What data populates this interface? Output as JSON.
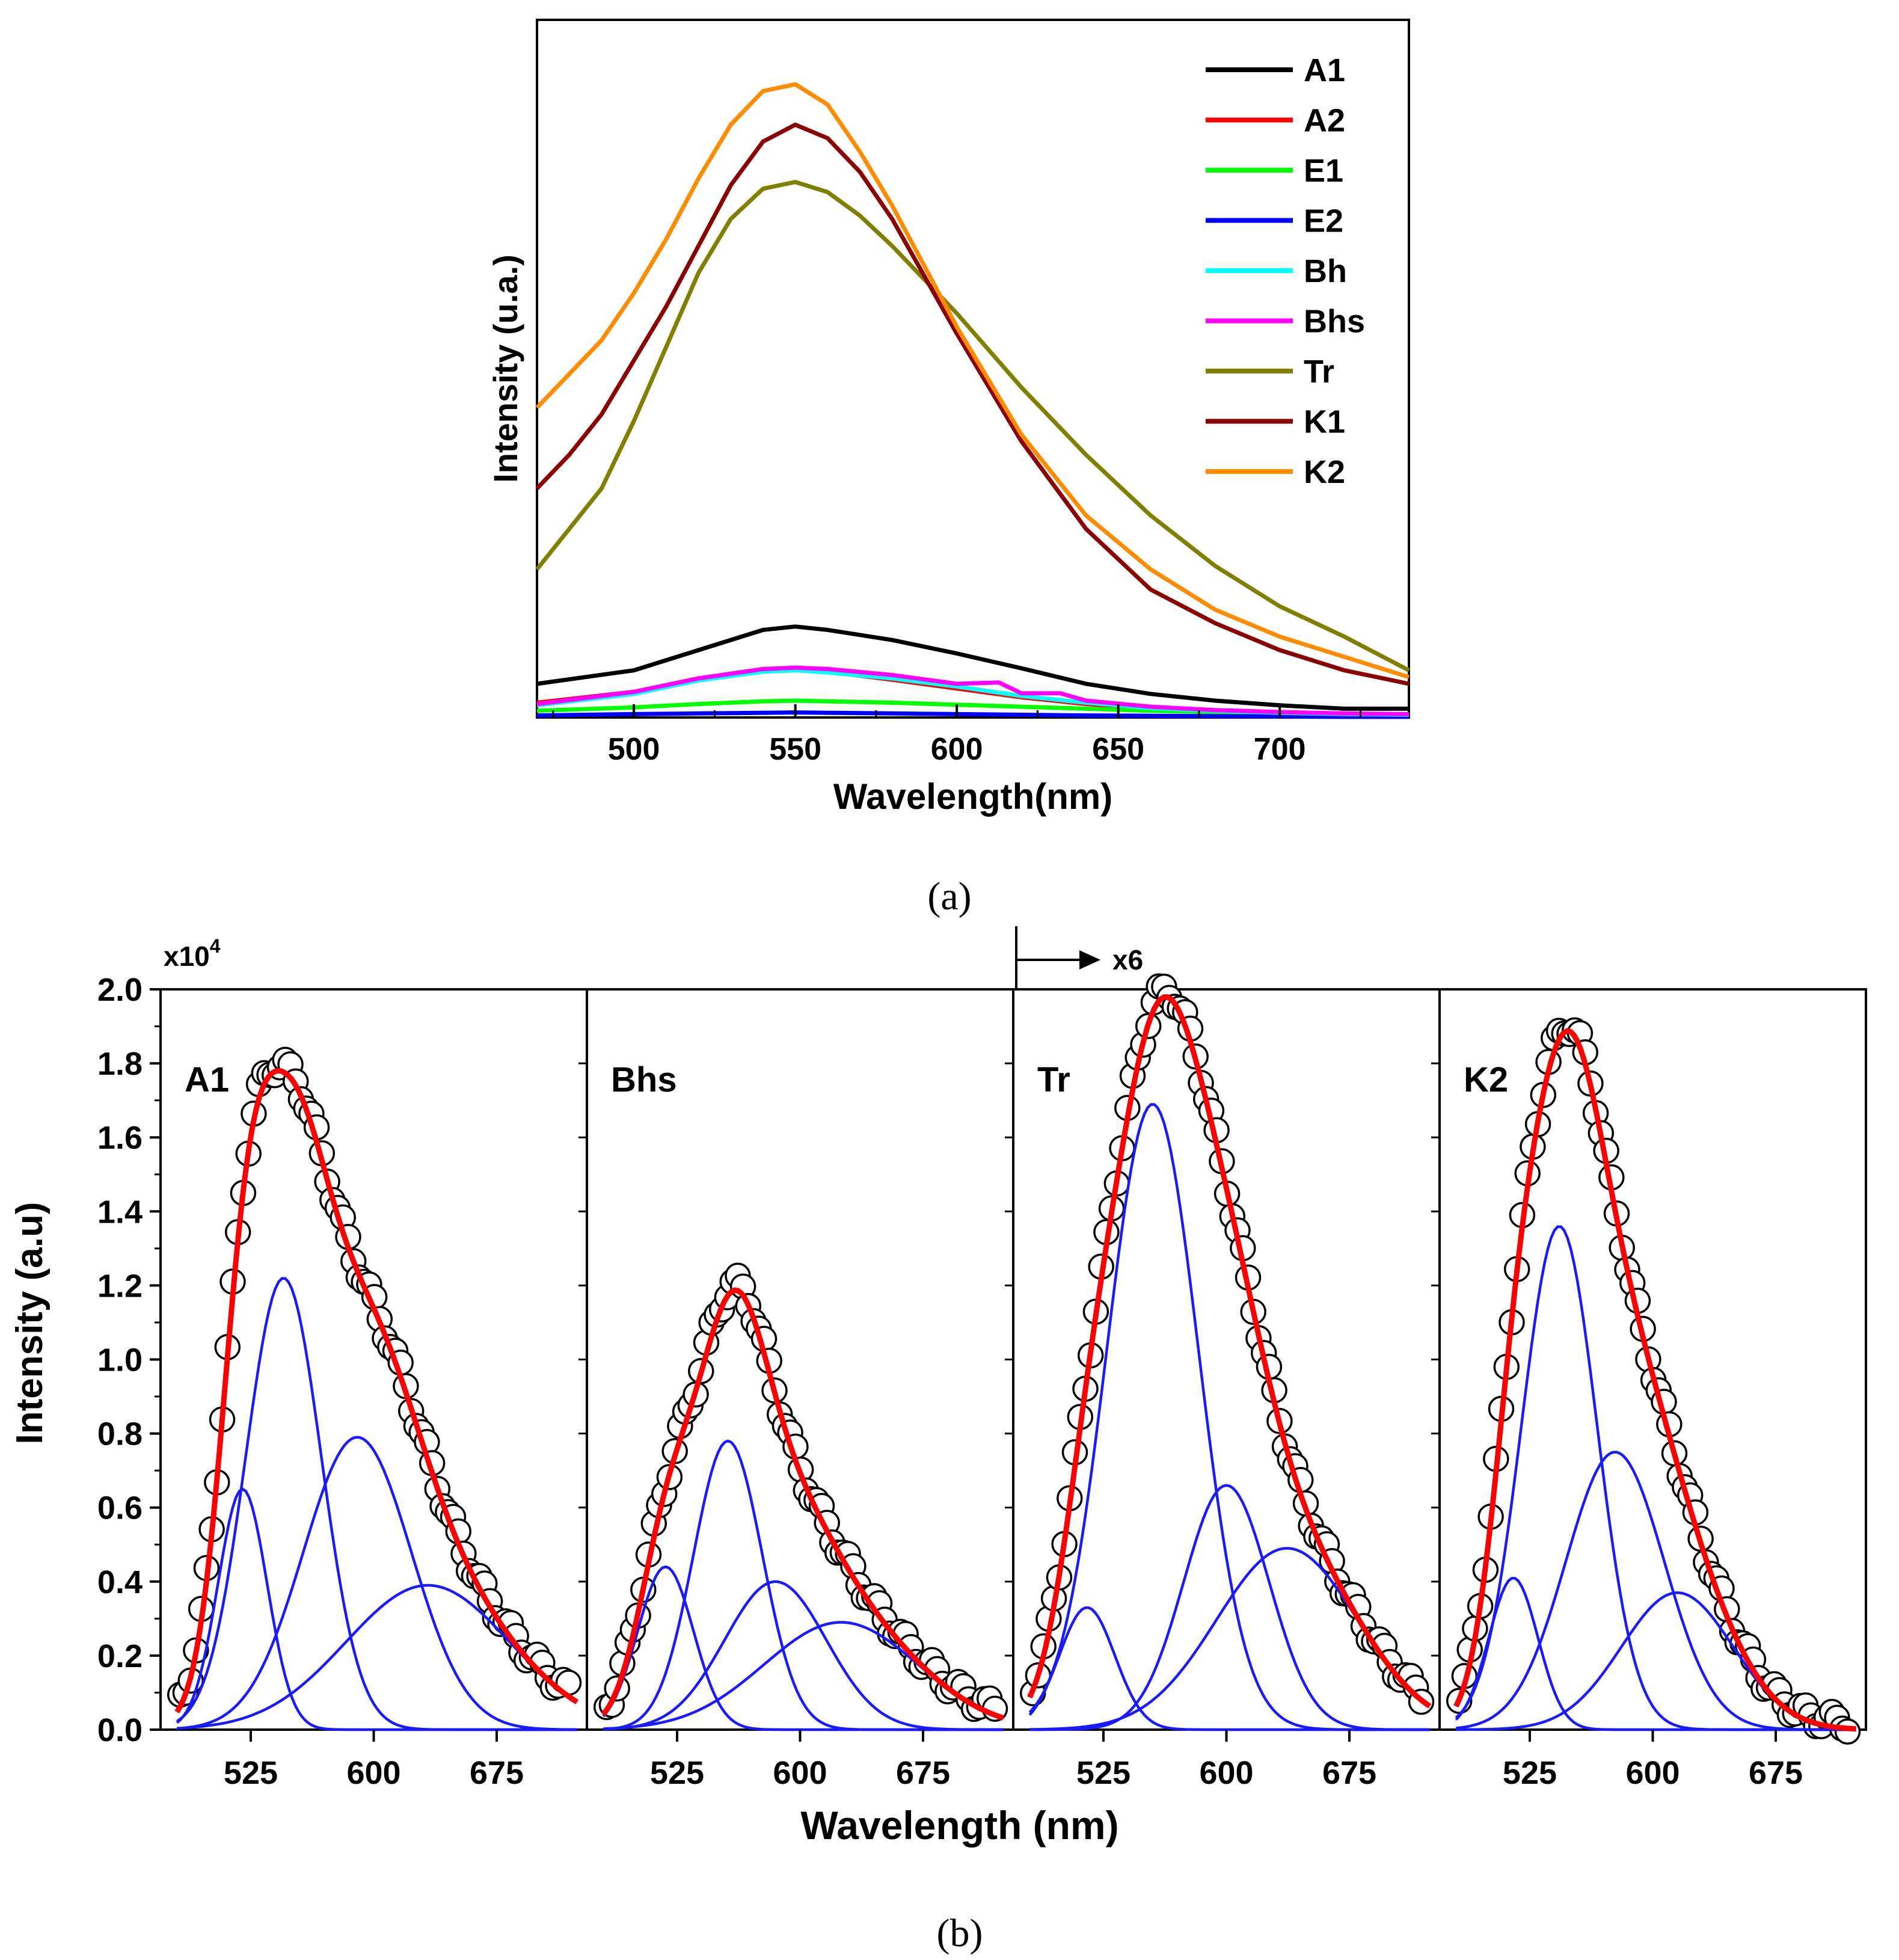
{
  "chart_data": [
    {
      "panel": "(a)",
      "type": "line",
      "xlabel": "Wavelength(nm)",
      "ylabel": "Intensity (u.a.)",
      "xlim": [
        470,
        740
      ],
      "ylim": [
        0,
        100
      ],
      "xticks": [
        "500",
        "550",
        "600",
        "650",
        "700"
      ],
      "legend_position": "top-right",
      "series": [
        {
          "name": "A1",
          "color": "#000000",
          "x": [
            470,
            500,
            520,
            540,
            550,
            560,
            580,
            600,
            620,
            640,
            660,
            680,
            700,
            720,
            740
          ],
          "y": [
            5,
            7,
            10,
            13,
            13.5,
            13,
            11.5,
            9.5,
            7.3,
            5,
            3.5,
            2.5,
            1.8,
            1.3,
            1.3
          ]
        },
        {
          "name": "A2",
          "color": "#ff0000",
          "x": [
            470,
            500,
            520,
            540,
            550,
            560,
            580,
            600,
            620,
            640,
            660,
            680,
            700,
            720,
            740
          ],
          "y": [
            2.2,
            3.8,
            5.8,
            7,
            7.1,
            6.8,
            5.6,
            4.3,
            3,
            2,
            1.3,
            0.9,
            0.6,
            0.4,
            0.3
          ]
        },
        {
          "name": "E1",
          "color": "#00ff00",
          "x": [
            470,
            500,
            520,
            540,
            550,
            560,
            580,
            600,
            620,
            640,
            660,
            680,
            700,
            720,
            740
          ],
          "y": [
            1,
            1.5,
            2,
            2.4,
            2.5,
            2.4,
            2.2,
            1.9,
            1.6,
            1.3,
            1,
            0.8,
            0.6,
            0.5,
            0.4
          ]
        },
        {
          "name": "E2",
          "color": "#0000ff",
          "x": [
            470,
            500,
            520,
            540,
            550,
            560,
            580,
            600,
            620,
            640,
            660,
            680,
            700,
            720,
            740
          ],
          "y": [
            0.3,
            0.5,
            0.6,
            0.7,
            0.75,
            0.7,
            0.6,
            0.5,
            0.4,
            0.3,
            0.25,
            0.2,
            0.15,
            0.1,
            0.1
          ]
        },
        {
          "name": "Bh",
          "color": "#00ffff",
          "x": [
            470,
            500,
            520,
            540,
            550,
            560,
            580,
            600,
            620,
            640,
            660,
            680,
            700,
            720,
            740
          ],
          "y": [
            1.8,
            3.5,
            5.5,
            6.8,
            7,
            6.7,
            5.8,
            4.6,
            3.2,
            2.2,
            1.4,
            1,
            0.7,
            0.5,
            0.4
          ]
        },
        {
          "name": "Bhs",
          "color": "#ff00ff",
          "x": [
            470,
            500,
            520,
            540,
            550,
            560,
            580,
            600,
            613,
            620,
            632,
            640,
            660,
            680,
            700,
            720,
            740
          ],
          "y": [
            2,
            3.8,
            5.8,
            7.2,
            7.4,
            7.2,
            6.3,
            5,
            5.2,
            3.6,
            3.6,
            2.5,
            1.6,
            1.1,
            0.8,
            0.6,
            0.5
          ]
        },
        {
          "name": "Tr",
          "color": "#808000",
          "x": [
            470,
            480,
            490,
            500,
            510,
            520,
            530,
            540,
            550,
            560,
            570,
            580,
            600,
            620,
            640,
            660,
            680,
            700,
            720,
            740
          ],
          "y": [
            22,
            28,
            34,
            44,
            55,
            66,
            74,
            78.5,
            79.5,
            78,
            74.5,
            70,
            60,
            49,
            39,
            30,
            22.5,
            16.5,
            12,
            7
          ]
        },
        {
          "name": "K1",
          "color": "#8b0000",
          "x": [
            470,
            480,
            490,
            500,
            510,
            520,
            530,
            540,
            550,
            560,
            570,
            580,
            600,
            620,
            640,
            660,
            680,
            700,
            720,
            740
          ],
          "y": [
            34,
            39,
            45,
            53,
            61,
            70,
            79,
            85.5,
            88,
            86,
            81,
            74,
            57,
            41,
            28,
            19,
            14,
            10,
            7,
            5
          ]
        },
        {
          "name": "K2",
          "color": "#ff8c00",
          "x": [
            470,
            480,
            490,
            500,
            510,
            520,
            530,
            540,
            550,
            560,
            570,
            580,
            600,
            620,
            640,
            660,
            680,
            700,
            720,
            740
          ],
          "y": [
            46,
            51,
            56,
            63,
            71,
            80,
            88,
            93,
            94,
            91,
            84,
            76,
            58,
            42,
            30,
            22,
            16,
            12,
            9,
            6
          ]
        }
      ]
    },
    {
      "panel": "(b)",
      "type": "line",
      "xlabel": "Wavelength (nm)",
      "ylabel": "Intensity (a.u)",
      "y_multiplier": "x10",
      "y_multiplier_exp": "4",
      "scale_note": "x6",
      "ylim": [
        0,
        2.0
      ],
      "yticks": [
        "0.0",
        "0.2",
        "0.4",
        "0.6",
        "0.8",
        "1.0",
        "1.2",
        "1.4",
        "1.6",
        "1.8",
        "2.0"
      ],
      "xlim": [
        470,
        730
      ],
      "xticks": [
        "525",
        "600",
        "675"
      ],
      "series_legend": {
        "measured": "open circles",
        "fit": "red line",
        "components": "blue lines"
      },
      "panels": [
        {
          "label": "A1",
          "components": [
            {
              "center": 520,
              "height": 0.65,
              "width": 15
            },
            {
              "center": 545,
              "height": 1.22,
              "width": 23
            },
            {
              "center": 590,
              "height": 0.79,
              "width": 33
            },
            {
              "center": 633,
              "height": 0.39,
              "width": 50
            }
          ]
        },
        {
          "label": "Bhs",
          "components": [
            {
              "center": 518,
              "height": 0.44,
              "width": 17
            },
            {
              "center": 556,
              "height": 0.78,
              "width": 21
            },
            {
              "center": 585,
              "height": 0.4,
              "width": 31
            },
            {
              "center": 625,
              "height": 0.29,
              "width": 47
            }
          ]
        },
        {
          "label": "Tr",
          "components": [
            {
              "center": 515,
              "height": 0.33,
              "width": 17
            },
            {
              "center": 555,
              "height": 1.69,
              "width": 28
            },
            {
              "center": 600,
              "height": 0.66,
              "width": 26
            },
            {
              "center": 637,
              "height": 0.49,
              "width": 43
            }
          ]
        },
        {
          "label": "K2",
          "components": [
            {
              "center": 515,
              "height": 0.41,
              "width": 15
            },
            {
              "center": 543,
              "height": 1.36,
              "width": 23
            },
            {
              "center": 577,
              "height": 0.75,
              "width": 30
            },
            {
              "center": 615,
              "height": 0.37,
              "width": 34
            }
          ]
        }
      ]
    }
  ],
  "captions": {
    "a": "(a)",
    "b": "(b)"
  }
}
